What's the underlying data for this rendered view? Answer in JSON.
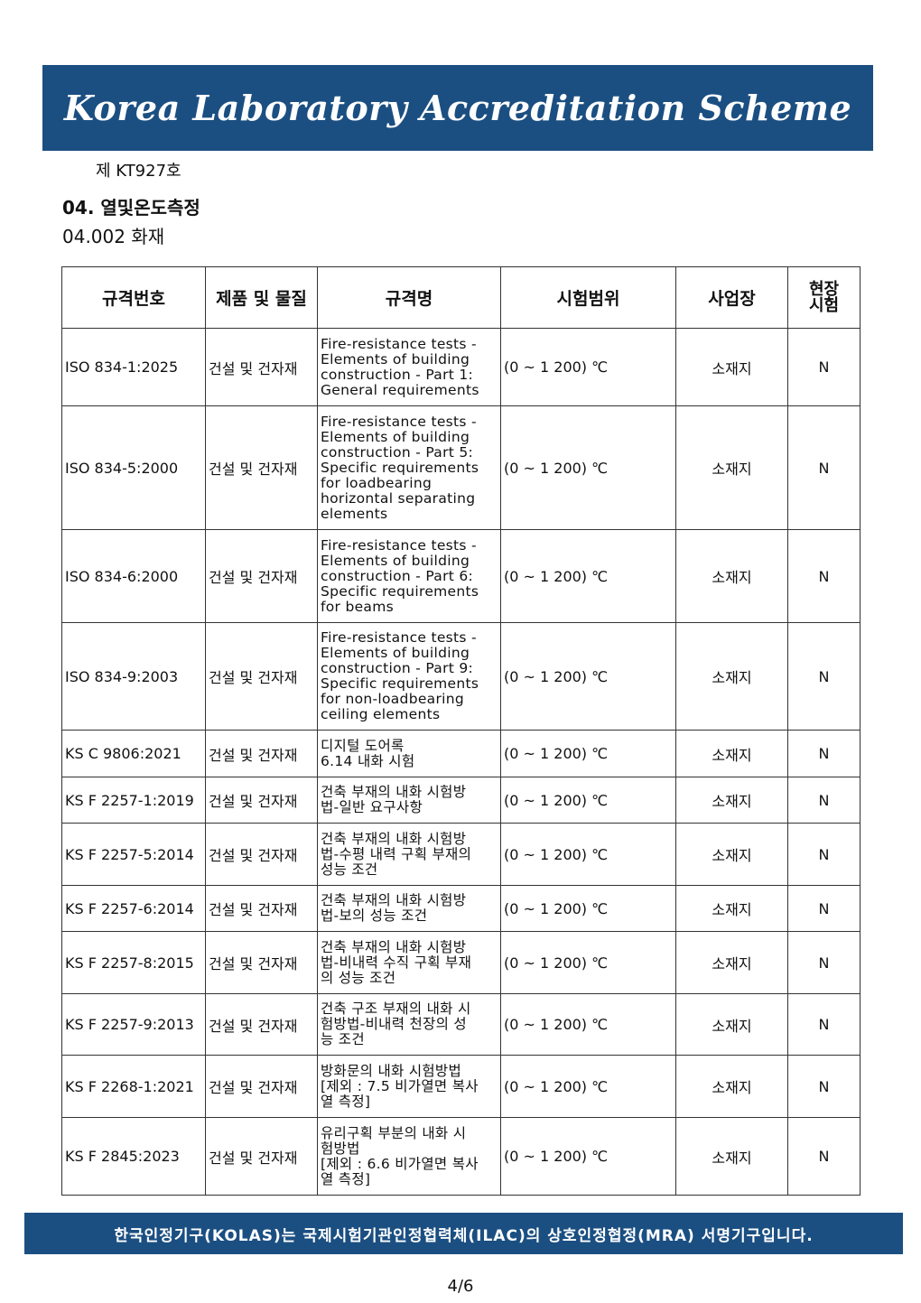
{
  "header": {
    "title": "Korea Laboratory Accreditation Scheme"
  },
  "cert_no": "제 KT927호",
  "section": "04. 열및온도측정",
  "subsection": "04.002 화재",
  "table": {
    "headers": [
      "규격번호",
      "제품 및 물질",
      "규격명",
      "시험범위",
      "사업장",
      "현장\n시험"
    ],
    "rows": [
      [
        "ISO 834-1:2025",
        "건설 및 건자재",
        "Fire-resistance tests -\nElements of building\nconstruction - Part 1:\nGeneral requirements",
        "(0 ~ 1 200) ℃",
        "소재지",
        "N"
      ],
      [
        "ISO 834-5:2000",
        "건설 및 건자재",
        "Fire-resistance tests -\nElements of building\nconstruction - Part 5:\nSpecific requirements\nfor loadbearing\nhorizontal separating\nelements",
        "(0 ~ 1 200) ℃",
        "소재지",
        "N"
      ],
      [
        "ISO 834-6:2000",
        "건설 및 건자재",
        "Fire-resistance tests -\nElements of building\nconstruction - Part 6:\nSpecific requirements\nfor beams",
        "(0 ~ 1 200) ℃",
        "소재지",
        "N"
      ],
      [
        "ISO 834-9:2003",
        "건설 및 건자재",
        "Fire-resistance tests -\nElements of building\nconstruction - Part 9:\nSpecific requirements\nfor non-loadbearing\nceiling elements",
        "(0 ~ 1 200) ℃",
        "소재지",
        "N"
      ],
      [
        "KS C 9806:2021",
        "건설 및 건자재",
        "디지털 도어록\n6.14 내화 시험",
        "(0 ~ 1 200) ℃",
        "소재지",
        "N"
      ],
      [
        "KS F 2257-1:2019",
        "건설 및 건자재",
        "건축 부재의 내화 시험방\n법-일반 요구사항",
        "(0 ~ 1 200) ℃",
        "소재지",
        "N"
      ],
      [
        "KS F 2257-5:2014",
        "건설 및 건자재",
        "건축 부재의 내화 시험방\n법-수평 내력 구획 부재의\n성능 조건",
        "(0 ~ 1 200) ℃",
        "소재지",
        "N"
      ],
      [
        "KS F 2257-6:2014",
        "건설 및 건자재",
        "건축 부재의 내화 시험방\n법-보의 성능 조건",
        "(0 ~ 1 200) ℃",
        "소재지",
        "N"
      ],
      [
        "KS F 2257-8:2015",
        "건설 및 건자재",
        "건축 부재의 내화 시험방\n법-비내력 수직 구획 부재\n의 성능 조건",
        "(0 ~ 1 200) ℃",
        "소재지",
        "N"
      ],
      [
        "KS F 2257-9:2013",
        "건설 및 건자재",
        "건축 구조 부재의 내화 시\n험방법-비내력 천장의 성\n능 조건",
        "(0 ~ 1 200) ℃",
        "소재지",
        "N"
      ],
      [
        "KS F 2268-1:2021",
        "건설 및 건자재",
        "방화문의 내화 시험방법\n[제외 : 7.5 비가열면 복사\n열 측정]",
        "(0 ~ 1 200) ℃",
        "소재지",
        "N"
      ],
      [
        "KS F 2845:2023",
        "건설 및 건자재",
        "유리구획 부분의 내화 시\n험방법\n[제외 : 6.6 비가열면 복사\n열 측정]",
        "(0 ~ 1 200) ℃",
        "소재지",
        "N"
      ]
    ]
  },
  "footer": "한국인정기구(KOLAS)는 국제시험기관인정협력체(ILAC)의 상호인정협정(MRA) 서명기구입니다.",
  "page": "4/6"
}
